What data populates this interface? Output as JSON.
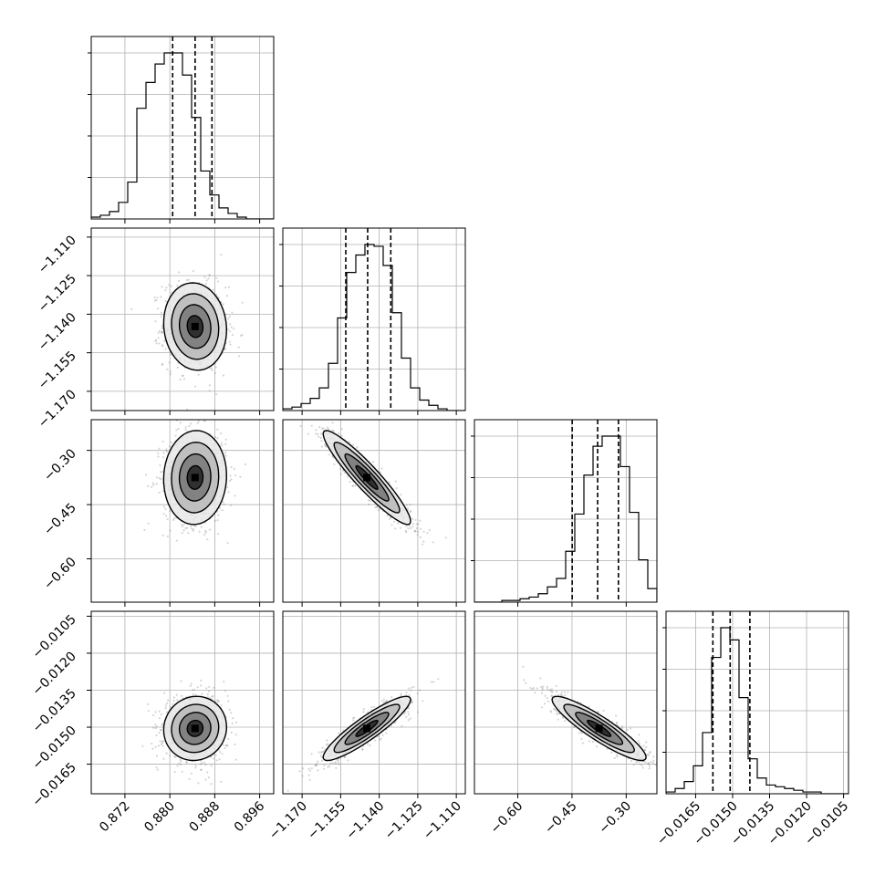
{
  "chart_data": {
    "type": "corner",
    "grid": true,
    "parameters": [
      {
        "index": 0,
        "mean": 0.8845,
        "sd": 0.0028,
        "range": [
          0.866,
          0.8985
        ],
        "ticks": [
          0.872,
          0.88,
          0.888,
          0.896
        ],
        "tick_labels": [
          "0.872",
          "0.880",
          "0.888",
          "0.896"
        ],
        "quantiles": [
          0.8805,
          0.8845,
          0.8875
        ],
        "histogram": [
          1,
          2,
          4,
          9,
          20,
          60,
          74,
          84,
          90,
          90,
          78,
          55,
          26,
          13,
          6,
          3,
          1,
          0,
          0,
          0
        ]
      },
      {
        "index": 1,
        "mean": -1.1448,
        "sd": 0.0085,
        "range": [
          -1.1775,
          -1.1065
        ],
        "ticks": [
          -1.17,
          -1.155,
          -1.14,
          -1.125,
          -1.11
        ],
        "tick_labels": [
          "−1.170",
          "−1.155",
          "−1.140",
          "−1.125",
          "−1.110"
        ],
        "quantiles": [
          -1.153,
          -1.1445,
          -1.1355
        ],
        "histogram": [
          1,
          2,
          4,
          7,
          13,
          27,
          53,
          79,
          89,
          95,
          94,
          83,
          56,
          30,
          13,
          6,
          3,
          1,
          0,
          0
        ]
      },
      {
        "index": 2,
        "mean": -0.375,
        "sd": 0.065,
        "range": [
          -0.72,
          -0.215
        ],
        "ticks": [
          -0.6,
          -0.45,
          -0.3
        ],
        "tick_labels": [
          "−0.60",
          "−0.45",
          "−0.30"
        ],
        "quantiles": [
          -0.4495,
          -0.379,
          -0.3215
        ],
        "histogram": [
          0,
          0,
          0,
          1,
          1,
          2,
          3,
          5,
          9,
          14,
          30,
          52,
          75,
          92,
          98,
          98,
          80,
          53,
          25,
          8
        ]
      },
      {
        "index": 3,
        "mean": -0.01505,
        "sd": 0.00065,
        "range": [
          -0.0177,
          -0.0103
        ],
        "ticks": [
          -0.0165,
          -0.015,
          -0.0135,
          -0.012,
          -0.0105
        ],
        "tick_labels": [
          "−0.0165",
          "−0.0150",
          "−0.0135",
          "−0.0120",
          "−0.0105"
        ],
        "quantiles": [
          -0.0158,
          -0.0151,
          -0.0143
        ],
        "histogram": [
          1,
          3,
          7,
          16,
          35,
          78,
          95,
          88,
          55,
          20,
          9,
          5,
          4,
          3,
          2,
          1,
          1,
          0,
          0,
          0
        ]
      }
    ],
    "correlations": [
      {
        "pair": [
          1,
          0
        ],
        "rho": -0.08
      },
      {
        "pair": [
          2,
          0
        ],
        "rho": 0.04
      },
      {
        "pair": [
          2,
          1
        ],
        "rho": -0.93
      },
      {
        "pair": [
          3,
          0
        ],
        "rho": 0.05
      },
      {
        "pair": [
          3,
          1
        ],
        "rho": 0.9
      },
      {
        "pair": [
          3,
          2
        ],
        "rho": -0.9
      }
    ],
    "contour_levels_sigma": [
      0.5,
      1.0,
      1.5,
      2.0
    ]
  }
}
